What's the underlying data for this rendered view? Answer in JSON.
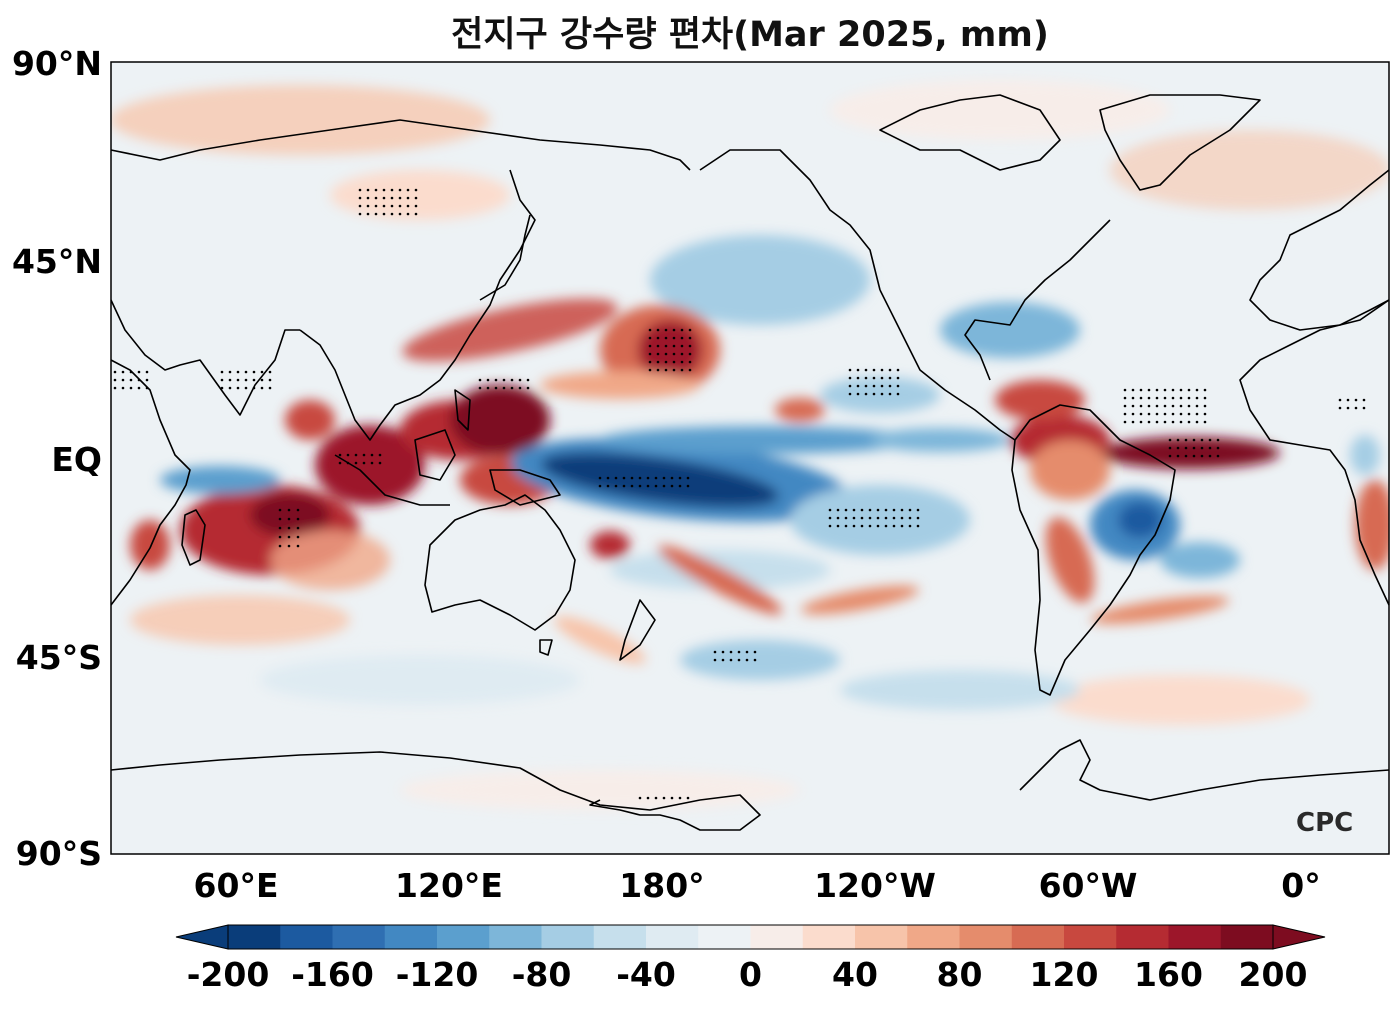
{
  "title": "전지구 강수량 편차(Mar 2025, mm)",
  "map": {
    "projection": "equirectangular, Pacific-centered",
    "lat_ticks": [
      "90°N",
      "45°N",
      "EQ",
      "45°S",
      "90°S"
    ],
    "lon_ticks": [
      "60°E",
      "120°E",
      "180°",
      "120°W",
      "60°W",
      "0°"
    ],
    "stippling": "dots mark significant anomalies",
    "watermark": "CPC"
  },
  "colorbar": {
    "tick_labels": [
      "-200",
      "-160",
      "-120",
      "-80",
      "-40",
      "0",
      "40",
      "80",
      "120",
      "160",
      "200"
    ],
    "levels": [
      -200,
      -180,
      -160,
      -140,
      -120,
      -100,
      -80,
      -60,
      -40,
      -20,
      0,
      20,
      40,
      60,
      80,
      100,
      120,
      140,
      160,
      180,
      200
    ],
    "colors": [
      "#0a3d7a",
      "#1c5aa0",
      "#2f6fb2",
      "#4288c2",
      "#5b9fce",
      "#7db6d9",
      "#a5cde4",
      "#c6dfec",
      "#dfebf2",
      "#edf2f5",
      "#f7ede9",
      "#fbdccd",
      "#f7c4aa",
      "#f0a888",
      "#e58c6c",
      "#d76b53",
      "#c8483f",
      "#b52b32",
      "#9c162a",
      "#7d0c20"
    ],
    "extend": "both"
  },
  "colors": {
    "ocean_background": "#edf2f5",
    "wet_max": "#7d0c20",
    "dry_max": "#0a3d7a",
    "coast": "#000000"
  }
}
